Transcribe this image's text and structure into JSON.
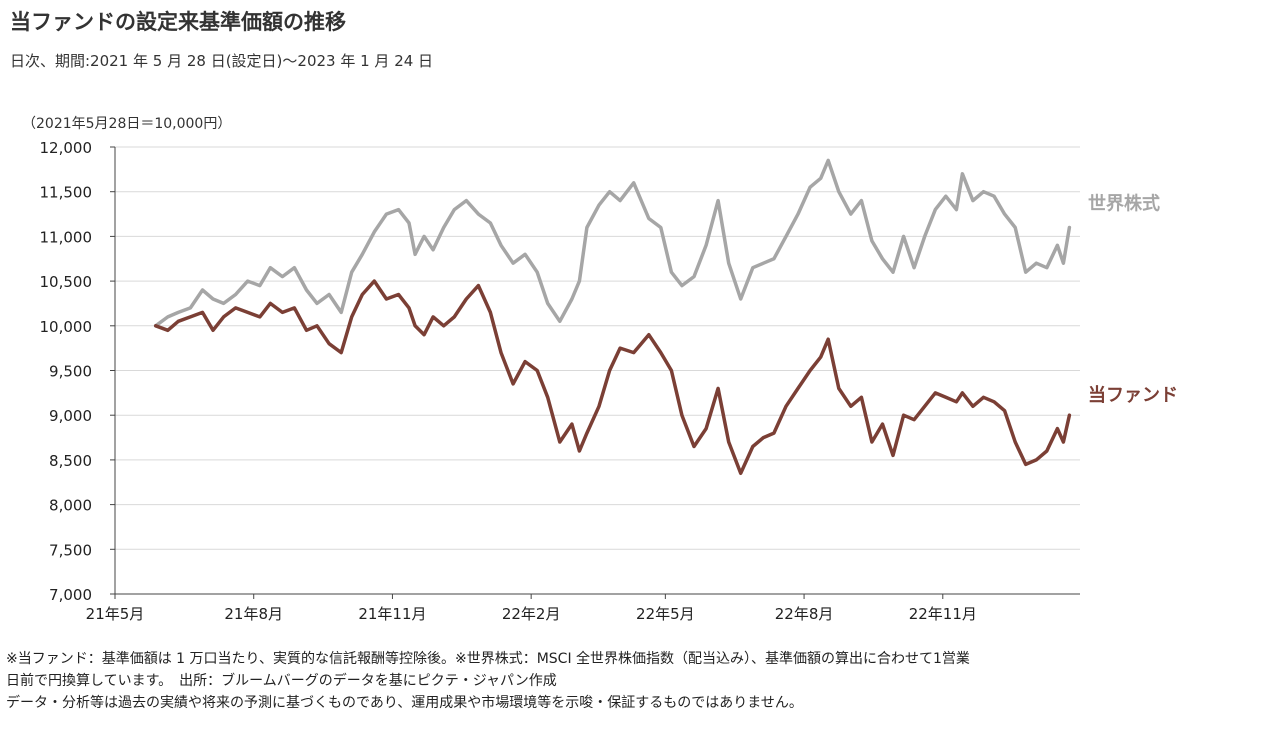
{
  "header": {
    "title": "当ファンドの設定来基準価額の推移",
    "subtitle": "日次、期間:2021 年 5 月 28 日(設定日)～2023 年 1 月 24 日"
  },
  "chart_data": {
    "type": "line",
    "unit_note": "（2021年5月28日＝10,000円）",
    "xlim": [
      "2021-05-01",
      "2023-01-31"
    ],
    "ylim": [
      7000,
      12000
    ],
    "y_ticks": [
      7000,
      7500,
      8000,
      8500,
      9000,
      9500,
      10000,
      10500,
      11000,
      11500,
      12000
    ],
    "y_tick_labels": [
      "7,000",
      "7,500",
      "8,000",
      "8,500",
      "9,000",
      "9,500",
      "10,000",
      "10,500",
      "11,000",
      "11,500",
      "12,000"
    ],
    "x_ticks": [
      "2021-05-01",
      "2021-08-01",
      "2021-11-01",
      "2022-02-01",
      "2022-05-01",
      "2022-08-01",
      "2022-11-01"
    ],
    "x_tick_labels": [
      "21年5月",
      "21年8月",
      "21年11月",
      "22年2月",
      "22年5月",
      "22年8月",
      "22年11月"
    ],
    "grid": true,
    "legend": "inline-right",
    "series": [
      {
        "name": "世界株式",
        "color": "#a6a6a6",
        "points": [
          [
            "2021-05-28",
            10000
          ],
          [
            "2021-06-05",
            10100
          ],
          [
            "2021-06-12",
            10150
          ],
          [
            "2021-06-20",
            10200
          ],
          [
            "2021-06-28",
            10400
          ],
          [
            "2021-07-05",
            10300
          ],
          [
            "2021-07-12",
            10250
          ],
          [
            "2021-07-20",
            10350
          ],
          [
            "2021-07-28",
            10500
          ],
          [
            "2021-08-05",
            10450
          ],
          [
            "2021-08-12",
            10650
          ],
          [
            "2021-08-20",
            10550
          ],
          [
            "2021-08-28",
            10650
          ],
          [
            "2021-09-05",
            10400
          ],
          [
            "2021-09-12",
            10250
          ],
          [
            "2021-09-20",
            10350
          ],
          [
            "2021-09-28",
            10150
          ],
          [
            "2021-10-05",
            10600
          ],
          [
            "2021-10-12",
            10800
          ],
          [
            "2021-10-20",
            11050
          ],
          [
            "2021-10-28",
            11250
          ],
          [
            "2021-11-05",
            11300
          ],
          [
            "2021-11-12",
            11150
          ],
          [
            "2021-11-16",
            10800
          ],
          [
            "2021-11-22",
            11000
          ],
          [
            "2021-11-28",
            10850
          ],
          [
            "2021-12-05",
            11100
          ],
          [
            "2021-12-12",
            11300
          ],
          [
            "2021-12-20",
            11400
          ],
          [
            "2021-12-28",
            11250
          ],
          [
            "2022-01-05",
            11150
          ],
          [
            "2022-01-12",
            10900
          ],
          [
            "2022-01-20",
            10700
          ],
          [
            "2022-01-28",
            10800
          ],
          [
            "2022-02-05",
            10600
          ],
          [
            "2022-02-12",
            10250
          ],
          [
            "2022-02-20",
            10050
          ],
          [
            "2022-02-28",
            10300
          ],
          [
            "2022-03-05",
            10500
          ],
          [
            "2022-03-10",
            11100
          ],
          [
            "2022-03-18",
            11350
          ],
          [
            "2022-03-25",
            11500
          ],
          [
            "2022-04-01",
            11400
          ],
          [
            "2022-04-10",
            11600
          ],
          [
            "2022-04-20",
            11200
          ],
          [
            "2022-04-28",
            11100
          ],
          [
            "2022-05-05",
            10600
          ],
          [
            "2022-05-12",
            10450
          ],
          [
            "2022-05-20",
            10550
          ],
          [
            "2022-05-28",
            10900
          ],
          [
            "2022-06-05",
            11400
          ],
          [
            "2022-06-12",
            10700
          ],
          [
            "2022-06-20",
            10300
          ],
          [
            "2022-06-28",
            10650
          ],
          [
            "2022-07-05",
            10700
          ],
          [
            "2022-07-12",
            10750
          ],
          [
            "2022-07-20",
            11000
          ],
          [
            "2022-07-28",
            11250
          ],
          [
            "2022-08-05",
            11550
          ],
          [
            "2022-08-12",
            11650
          ],
          [
            "2022-08-17",
            11850
          ],
          [
            "2022-08-24",
            11500
          ],
          [
            "2022-09-01",
            11250
          ],
          [
            "2022-09-08",
            11400
          ],
          [
            "2022-09-15",
            10950
          ],
          [
            "2022-09-22",
            10750
          ],
          [
            "2022-09-29",
            10600
          ],
          [
            "2022-10-06",
            11000
          ],
          [
            "2022-10-13",
            10650
          ],
          [
            "2022-10-20",
            11000
          ],
          [
            "2022-10-27",
            11300
          ],
          [
            "2022-11-03",
            11450
          ],
          [
            "2022-11-10",
            11300
          ],
          [
            "2022-11-14",
            11700
          ],
          [
            "2022-11-21",
            11400
          ],
          [
            "2022-11-28",
            11500
          ],
          [
            "2022-12-05",
            11450
          ],
          [
            "2022-12-12",
            11250
          ],
          [
            "2022-12-19",
            11100
          ],
          [
            "2022-12-26",
            10600
          ],
          [
            "2023-01-02",
            10700
          ],
          [
            "2023-01-09",
            10650
          ],
          [
            "2023-01-16",
            10900
          ],
          [
            "2023-01-20",
            10700
          ],
          [
            "2023-01-24",
            11100
          ]
        ]
      },
      {
        "name": "当ファンド",
        "color": "#7b3f35",
        "points": [
          [
            "2021-05-28",
            10000
          ],
          [
            "2021-06-05",
            9950
          ],
          [
            "2021-06-12",
            10050
          ],
          [
            "2021-06-20",
            10100
          ],
          [
            "2021-06-28",
            10150
          ],
          [
            "2021-07-05",
            9950
          ],
          [
            "2021-07-12",
            10100
          ],
          [
            "2021-07-20",
            10200
          ],
          [
            "2021-07-28",
            10150
          ],
          [
            "2021-08-05",
            10100
          ],
          [
            "2021-08-12",
            10250
          ],
          [
            "2021-08-20",
            10150
          ],
          [
            "2021-08-28",
            10200
          ],
          [
            "2021-09-05",
            9950
          ],
          [
            "2021-09-12",
            10000
          ],
          [
            "2021-09-20",
            9800
          ],
          [
            "2021-09-28",
            9700
          ],
          [
            "2021-10-05",
            10100
          ],
          [
            "2021-10-12",
            10350
          ],
          [
            "2021-10-20",
            10500
          ],
          [
            "2021-10-28",
            10300
          ],
          [
            "2021-11-05",
            10350
          ],
          [
            "2021-11-12",
            10200
          ],
          [
            "2021-11-16",
            10000
          ],
          [
            "2021-11-22",
            9900
          ],
          [
            "2021-11-28",
            10100
          ],
          [
            "2021-12-05",
            10000
          ],
          [
            "2021-12-12",
            10100
          ],
          [
            "2021-12-20",
            10300
          ],
          [
            "2021-12-28",
            10450
          ],
          [
            "2022-01-05",
            10150
          ],
          [
            "2022-01-12",
            9700
          ],
          [
            "2022-01-20",
            9350
          ],
          [
            "2022-01-28",
            9600
          ],
          [
            "2022-02-05",
            9500
          ],
          [
            "2022-02-12",
            9200
          ],
          [
            "2022-02-20",
            8700
          ],
          [
            "2022-02-28",
            8900
          ],
          [
            "2022-03-05",
            8600
          ],
          [
            "2022-03-10",
            8800
          ],
          [
            "2022-03-18",
            9100
          ],
          [
            "2022-03-25",
            9500
          ],
          [
            "2022-04-01",
            9750
          ],
          [
            "2022-04-10",
            9700
          ],
          [
            "2022-04-20",
            9900
          ],
          [
            "2022-04-28",
            9700
          ],
          [
            "2022-05-05",
            9500
          ],
          [
            "2022-05-12",
            9000
          ],
          [
            "2022-05-20",
            8650
          ],
          [
            "2022-05-28",
            8850
          ],
          [
            "2022-06-05",
            9300
          ],
          [
            "2022-06-12",
            8700
          ],
          [
            "2022-06-20",
            8350
          ],
          [
            "2022-06-28",
            8650
          ],
          [
            "2022-07-05",
            8750
          ],
          [
            "2022-07-12",
            8800
          ],
          [
            "2022-07-20",
            9100
          ],
          [
            "2022-07-28",
            9300
          ],
          [
            "2022-08-05",
            9500
          ],
          [
            "2022-08-12",
            9650
          ],
          [
            "2022-08-17",
            9850
          ],
          [
            "2022-08-24",
            9300
          ],
          [
            "2022-09-01",
            9100
          ],
          [
            "2022-09-08",
            9200
          ],
          [
            "2022-09-15",
            8700
          ],
          [
            "2022-09-22",
            8900
          ],
          [
            "2022-09-29",
            8550
          ],
          [
            "2022-10-06",
            9000
          ],
          [
            "2022-10-13",
            8950
          ],
          [
            "2022-10-20",
            9100
          ],
          [
            "2022-10-27",
            9250
          ],
          [
            "2022-11-03",
            9200
          ],
          [
            "2022-11-10",
            9150
          ],
          [
            "2022-11-14",
            9250
          ],
          [
            "2022-11-21",
            9100
          ],
          [
            "2022-11-28",
            9200
          ],
          [
            "2022-12-05",
            9150
          ],
          [
            "2022-12-12",
            9050
          ],
          [
            "2022-12-19",
            8700
          ],
          [
            "2022-12-26",
            8450
          ],
          [
            "2023-01-02",
            8500
          ],
          [
            "2023-01-09",
            8600
          ],
          [
            "2023-01-16",
            8850
          ],
          [
            "2023-01-20",
            8700
          ],
          [
            "2023-01-24",
            9000
          ]
        ]
      }
    ]
  },
  "footnotes": [
    "※当ファンド：基準価額は 1 万口当たり、実質的な信託報酬等控除後。※世界株式：MSCI 全世界株価指数（配当込み）、基準価額の算出に合わせて1営業",
    "日前で円換算しています。　出所：ブルームバーグのデータを基にピクテ・ジャパン作成",
    "データ・分析等は過去の実績や将来の予測に基づくものであり、運用成果や市場環境等を示唆・保証するものではありません。"
  ]
}
